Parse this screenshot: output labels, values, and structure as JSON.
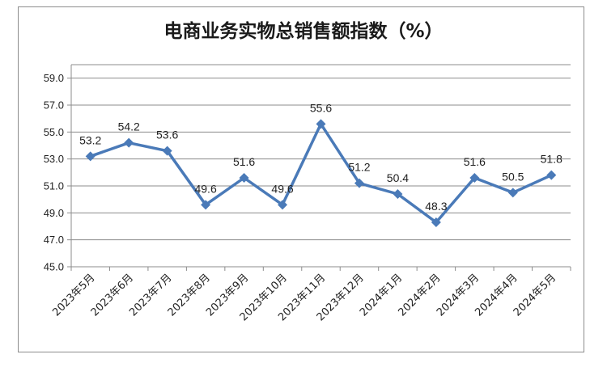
{
  "chart_data": {
    "type": "line",
    "title": "电商业务实物总销售额指数（%）",
    "xlabel": "",
    "ylabel": "",
    "categories": [
      "2023年5月",
      "2023年6月",
      "2023年7月",
      "2023年8月",
      "2023年9月",
      "2023年10月",
      "2023年11月",
      "2023年12月",
      "2024年1月",
      "2024年2月",
      "2024年3月",
      "2024年4月",
      "2024年5月"
    ],
    "series": [
      {
        "values": [
          53.2,
          54.2,
          53.6,
          49.6,
          51.6,
          49.6,
          55.6,
          51.2,
          50.4,
          48.3,
          51.6,
          50.5,
          51.8
        ]
      }
    ],
    "ylim": [
      45.0,
      60.0
    ],
    "yticks": [
      "45.0",
      "47.0",
      "49.0",
      "51.0",
      "53.0",
      "55.0",
      "57.0",
      "59.0"
    ],
    "data_labels": [
      "53.2",
      "54.2",
      "53.6",
      "49.6",
      "51.6",
      "49.6",
      "55.6",
      "51.2",
      "50.4",
      "48.3",
      "51.6",
      "50.5",
      "51.8"
    ],
    "grid": true,
    "legend": "none",
    "colors": {
      "line": "#4a7ab8",
      "grid": "#8c8c8c"
    }
  }
}
